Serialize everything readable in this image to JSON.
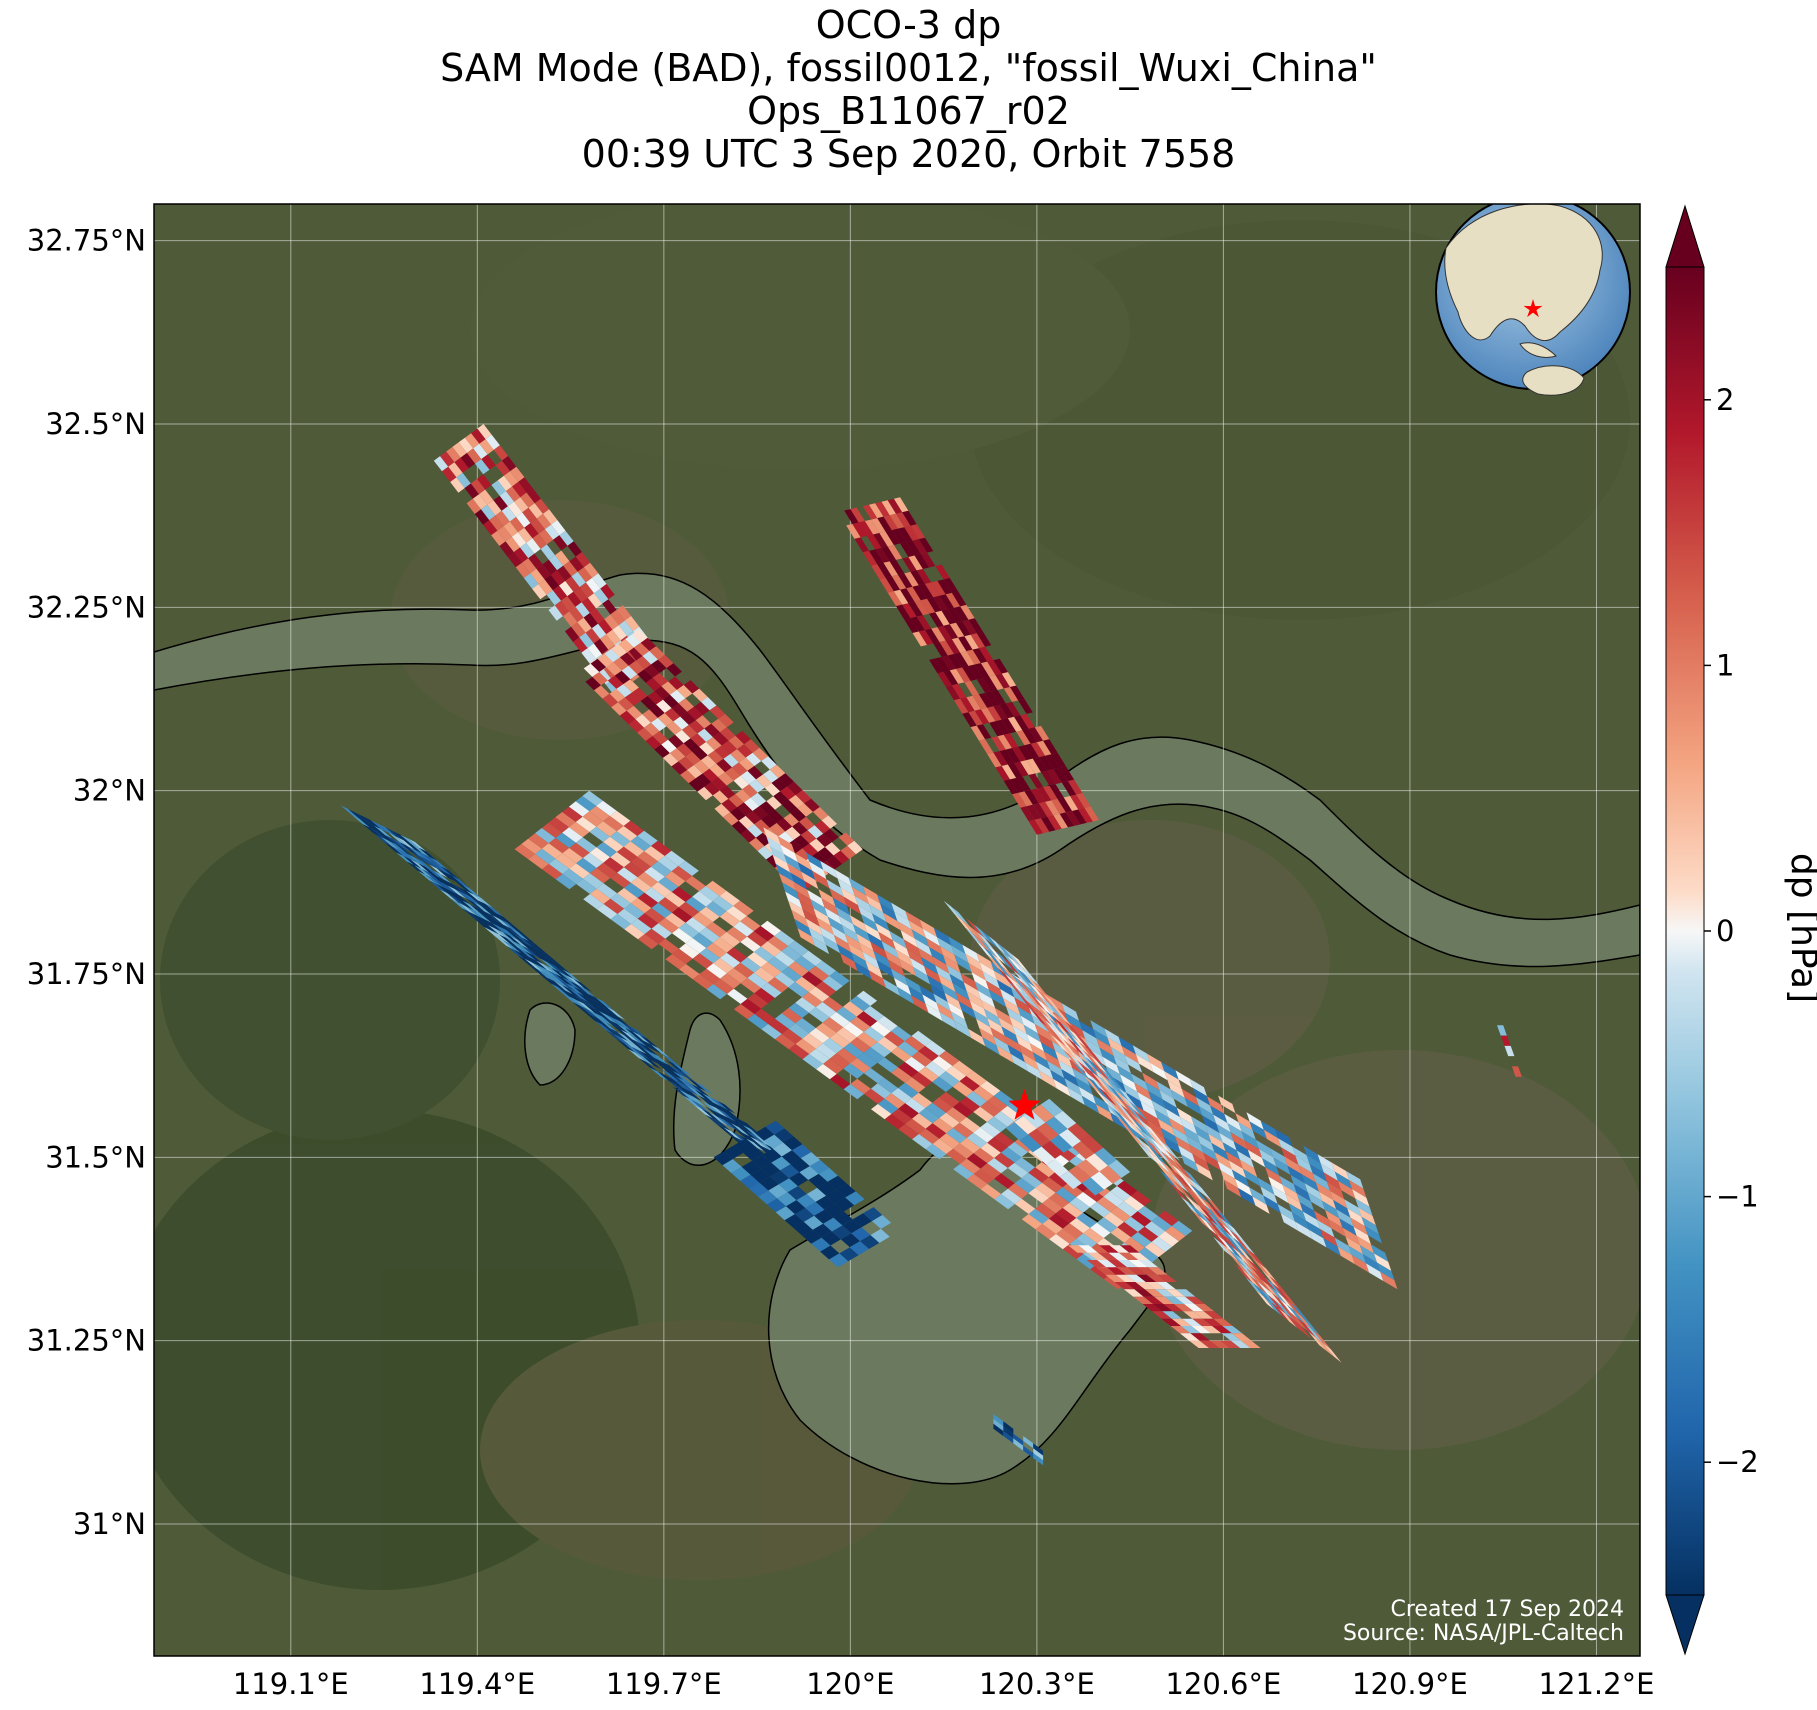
{
  "title": {
    "line1": "OCO-3 dp",
    "line2": "SAM Mode (BAD), fossil0012, \"fossil_Wuxi_China\"",
    "line3": "Ops_B11067_r02",
    "line4": "00:39 UTC 3 Sep 2020, Orbit 7558"
  },
  "map": {
    "lon_range": [
      118.88,
      121.27
    ],
    "lat_range": [
      30.82,
      32.8
    ],
    "lon_ticks": [
      {
        "value": 119.1,
        "label": "119.1°E"
      },
      {
        "value": 119.4,
        "label": "119.4°E"
      },
      {
        "value": 119.7,
        "label": "119.7°E"
      },
      {
        "value": 120.0,
        "label": "120°E"
      },
      {
        "value": 120.3,
        "label": "120.3°E"
      },
      {
        "value": 120.6,
        "label": "120.6°E"
      },
      {
        "value": 120.9,
        "label": "120.9°E"
      },
      {
        "value": 121.2,
        "label": "121.2°E"
      }
    ],
    "lat_ticks": [
      {
        "value": 32.75,
        "label": "32.75°N"
      },
      {
        "value": 32.5,
        "label": "32.5°N"
      },
      {
        "value": 32.25,
        "label": "32.25°N"
      },
      {
        "value": 32.0,
        "label": "32°N"
      },
      {
        "value": 31.75,
        "label": "31.75°N"
      },
      {
        "value": 31.5,
        "label": "31.5°N"
      },
      {
        "value": 31.25,
        "label": "31.25°N"
      },
      {
        "value": 31.0,
        "label": "31°N"
      }
    ],
    "grid": true,
    "basemap": "satellite imagery",
    "target": {
      "lon": 120.28,
      "lat": 31.57,
      "marker": "star-icon",
      "color": "#ff0000"
    },
    "inset": {
      "type": "globe",
      "marker": "star-icon"
    }
  },
  "colorbar": {
    "label": "dp [hPa]",
    "range": [
      -2.5,
      2.5
    ],
    "extend": "both",
    "colormap": "RdBu_r",
    "ticks": [
      {
        "value": 2,
        "label": "2"
      },
      {
        "value": 1,
        "label": "1"
      },
      {
        "value": 0,
        "label": "0"
      },
      {
        "value": -1,
        "label": "−1"
      },
      {
        "value": -2,
        "label": "−2"
      }
    ]
  },
  "swaths": [
    {
      "start": [
        119.41,
        32.5
      ],
      "end": [
        119.7,
        32.18
      ],
      "cross": [
        -0.08,
        -0.05
      ],
      "n": 8,
      "cols": 22,
      "bias": 0.9
    },
    {
      "start": [
        119.66,
        32.22
      ],
      "end": [
        120.02,
        31.92
      ],
      "cross": [
        -0.1,
        -0.06
      ],
      "n": 9,
      "cols": 26,
      "bias": 1.3
    },
    {
      "start": [
        119.98,
        32.38
      ],
      "end": [
        120.3,
        31.94
      ],
      "cross": [
        0.1,
        0.02
      ],
      "n": 10,
      "cols": 24,
      "bias": 2.1
    },
    {
      "start": [
        119.58,
        32.0
      ],
      "end": [
        120.55,
        31.4
      ],
      "cross": [
        -0.12,
        -0.08
      ],
      "n": 11,
      "cols": 44,
      "bias": 0.4
    },
    {
      "start": [
        119.86,
        31.95
      ],
      "end": [
        120.82,
        31.47
      ],
      "cross": [
        0.06,
        -0.15
      ],
      "n": 12,
      "cols": 42,
      "bias": -0.2
    },
    {
      "start": [
        120.15,
        31.85
      ],
      "end": [
        120.67,
        31.3
      ],
      "cross": [
        0.12,
        -0.08
      ],
      "n": 10,
      "cols": 30,
      "bias": 0.1
    },
    {
      "start": [
        119.18,
        31.98
      ],
      "end": [
        119.82,
        31.52
      ],
      "cross": [
        0.12,
        -0.05
      ],
      "n": 10,
      "cols": 36,
      "bias": -2.2
    },
    {
      "start": [
        119.78,
        31.5
      ],
      "end": [
        119.98,
        31.35
      ],
      "cross": [
        0.1,
        0.05
      ],
      "n": 6,
      "cols": 14,
      "bias": -2.3
    },
    {
      "start": [
        120.45,
        31.38
      ],
      "end": [
        120.66,
        31.24
      ],
      "cross": [
        -0.1,
        0.0
      ],
      "n": 6,
      "cols": 14,
      "bias": 0.8
    },
    {
      "start": [
        120.32,
        31.58
      ],
      "end": [
        120.45,
        31.48
      ],
      "cross": [
        -0.07,
        -0.04
      ],
      "n": 5,
      "cols": 6,
      "bias": 0.2
    },
    {
      "start": [
        120.23,
        31.15
      ],
      "end": [
        120.31,
        31.1
      ],
      "cross": [
        0.0,
        -0.02
      ],
      "n": 3,
      "cols": 5,
      "bias": -2.0
    },
    {
      "start": [
        121.04,
        31.68
      ],
      "end": [
        121.07,
        31.61
      ],
      "cross": [
        0.01,
        0.0
      ],
      "n": 1,
      "cols": 5,
      "bias": 0.6
    }
  ],
  "footer": {
    "created": "Created 17 Sep 2024",
    "source": "Source: NASA/JPL-Caltech"
  }
}
